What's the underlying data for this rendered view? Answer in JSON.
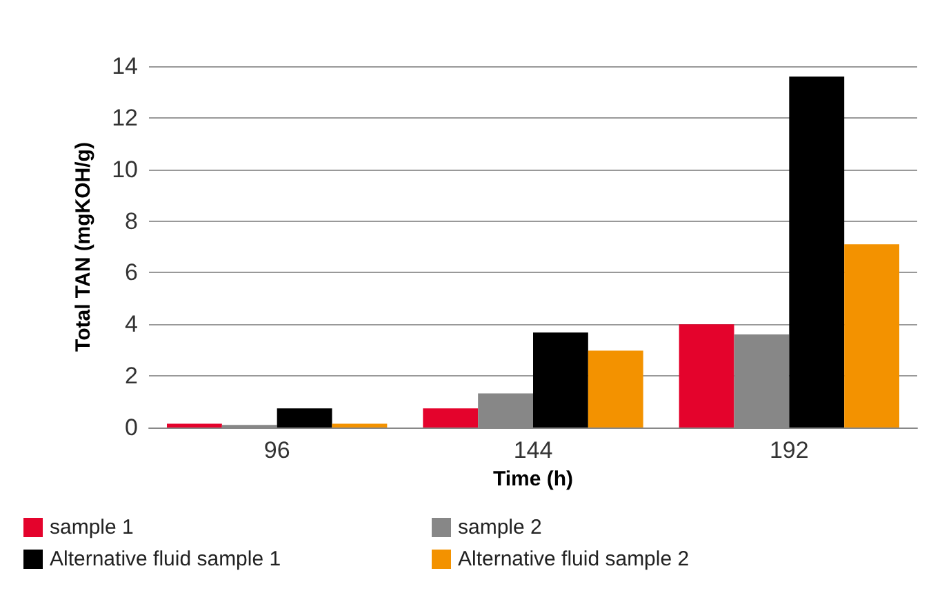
{
  "chart_data": {
    "type": "bar",
    "xlabel": "Time (h)",
    "ylabel": "Total TAN (mgKOH/g)",
    "categories": [
      "96",
      "144",
      "192"
    ],
    "series": [
      {
        "name": "sample 1",
        "color": "#e4032c",
        "values": [
          0.15,
          0.74,
          4.0
        ]
      },
      {
        "name": "sample 2",
        "color": "#878787",
        "values": [
          0.1,
          1.32,
          3.61
        ]
      },
      {
        "name": "Alternative fluid sample 1",
        "color": "#000000",
        "values": [
          0.74,
          3.68,
          13.6
        ]
      },
      {
        "name": "Alternative fluid sample 2",
        "color": "#f39200",
        "values": [
          0.15,
          2.98,
          7.1
        ]
      }
    ],
    "ylim": [
      0,
      14
    ],
    "yticks": [
      0,
      2,
      4,
      6,
      8,
      10,
      12,
      14
    ],
    "grid": "y",
    "legend": "bottom"
  }
}
